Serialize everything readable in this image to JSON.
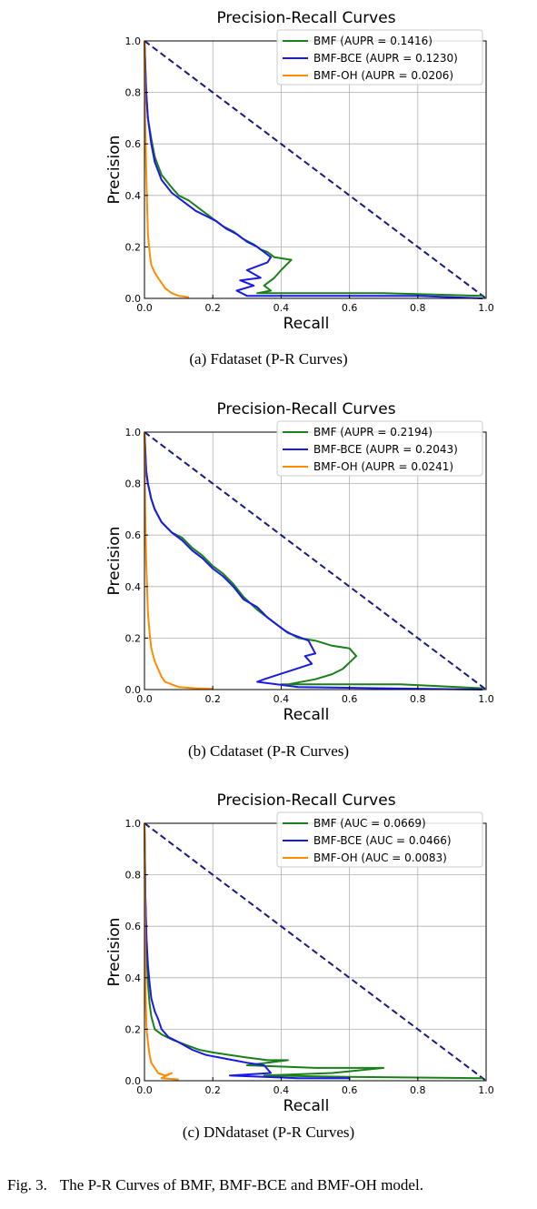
{
  "chart_data": [
    {
      "type": "line",
      "title": "Precision-Recall Curves",
      "xlabel": "Recall",
      "ylabel": "Precision",
      "xlim": [
        0,
        1
      ],
      "ylim": [
        0,
        1
      ],
      "xticks": [
        "0.0",
        "0.2",
        "0.4",
        "0.6",
        "0.8",
        "1.0"
      ],
      "yticks": [
        "0.0",
        "0.2",
        "0.4",
        "0.6",
        "0.8",
        "1.0"
      ],
      "grid": true,
      "legend_position": "top-right",
      "caption": "(a) Fdataset (P-R Curves)",
      "reference_line": {
        "x": [
          0,
          1
        ],
        "y": [
          1,
          0
        ],
        "color": "#1a1a80",
        "style": "dashed"
      },
      "series": [
        {
          "name": "BMF (AUPR = 0.1416)",
          "color": "#1a801a",
          "x": [
            0.0,
            0.005,
            0.01,
            0.02,
            0.03,
            0.05,
            0.08,
            0.1,
            0.13,
            0.17,
            0.2,
            0.23,
            0.26,
            0.29,
            0.32,
            0.34,
            0.36,
            0.38,
            0.43,
            0.4,
            0.38,
            0.36,
            0.38,
            0.35,
            0.37,
            0.33,
            0.36,
            0.5,
            0.7,
            0.99
          ],
          "y": [
            1.0,
            0.8,
            0.7,
            0.62,
            0.55,
            0.48,
            0.43,
            0.4,
            0.38,
            0.34,
            0.31,
            0.28,
            0.26,
            0.23,
            0.21,
            0.19,
            0.18,
            0.16,
            0.15,
            0.11,
            0.08,
            0.06,
            0.08,
            0.05,
            0.03,
            0.02,
            0.02,
            0.02,
            0.02,
            0.01
          ]
        },
        {
          "name": "BMF-BCE (AUPR = 0.1230)",
          "color": "#1a1ae6",
          "x": [
            0.0,
            0.005,
            0.01,
            0.02,
            0.03,
            0.05,
            0.08,
            0.12,
            0.15,
            0.18,
            0.21,
            0.24,
            0.27,
            0.3,
            0.33,
            0.35,
            0.37,
            0.36,
            0.3,
            0.34,
            0.28,
            0.32,
            0.27,
            0.3,
            0.4,
            0.6,
            0.8,
            0.99
          ],
          "y": [
            1.0,
            0.8,
            0.7,
            0.6,
            0.53,
            0.46,
            0.41,
            0.37,
            0.34,
            0.32,
            0.3,
            0.27,
            0.25,
            0.22,
            0.2,
            0.18,
            0.16,
            0.14,
            0.11,
            0.08,
            0.07,
            0.05,
            0.03,
            0.01,
            0.01,
            0.01,
            0.01,
            0.0
          ]
        },
        {
          "name": "BMF-OH (AUPR = 0.0206)",
          "color": "#ff8c00",
          "x": [
            0.0,
            0.002,
            0.005,
            0.008,
            0.01,
            0.015,
            0.02,
            0.03,
            0.04,
            0.05,
            0.06,
            0.07,
            0.08,
            0.1,
            0.13
          ],
          "y": [
            1.0,
            0.7,
            0.5,
            0.35,
            0.25,
            0.18,
            0.13,
            0.1,
            0.08,
            0.06,
            0.04,
            0.03,
            0.02,
            0.01,
            0.005
          ]
        }
      ]
    },
    {
      "type": "line",
      "title": "Precision-Recall Curves",
      "xlabel": "Recall",
      "ylabel": "Precision",
      "xlim": [
        0,
        1
      ],
      "ylim": [
        0,
        1
      ],
      "xticks": [
        "0.0",
        "0.2",
        "0.4",
        "0.6",
        "0.8",
        "1.0"
      ],
      "yticks": [
        "0.0",
        "0.2",
        "0.4",
        "0.6",
        "0.8",
        "1.0"
      ],
      "grid": true,
      "legend_position": "top-right",
      "caption": "(b) Cdataset (P-R Curves)",
      "reference_line": {
        "x": [
          0,
          1
        ],
        "y": [
          1,
          0
        ],
        "color": "#1a1a80",
        "style": "dashed"
      },
      "series": [
        {
          "name": "BMF (AUPR = 0.2194)",
          "color": "#1a801a",
          "x": [
            0.0,
            0.005,
            0.01,
            0.02,
            0.03,
            0.05,
            0.08,
            0.11,
            0.14,
            0.17,
            0.2,
            0.23,
            0.26,
            0.29,
            0.33,
            0.37,
            0.41,
            0.45,
            0.5,
            0.55,
            0.6,
            0.62,
            0.58,
            0.55,
            0.5,
            0.42,
            0.4,
            0.5,
            0.75,
            0.99
          ],
          "y": [
            1.0,
            0.85,
            0.8,
            0.74,
            0.7,
            0.65,
            0.61,
            0.59,
            0.55,
            0.52,
            0.48,
            0.45,
            0.41,
            0.36,
            0.31,
            0.27,
            0.23,
            0.2,
            0.19,
            0.17,
            0.16,
            0.13,
            0.08,
            0.06,
            0.04,
            0.02,
            0.02,
            0.02,
            0.02,
            0.005
          ]
        },
        {
          "name": "BMF-BCE (AUPR = 0.2043)",
          "color": "#1a1ae6",
          "x": [
            0.0,
            0.005,
            0.01,
            0.02,
            0.03,
            0.05,
            0.08,
            0.11,
            0.14,
            0.17,
            0.2,
            0.23,
            0.26,
            0.29,
            0.33,
            0.36,
            0.39,
            0.42,
            0.48,
            0.5,
            0.47,
            0.49,
            0.42,
            0.35,
            0.33,
            0.45,
            0.7,
            0.99
          ],
          "y": [
            1.0,
            0.85,
            0.8,
            0.74,
            0.7,
            0.65,
            0.61,
            0.58,
            0.54,
            0.51,
            0.47,
            0.44,
            0.4,
            0.35,
            0.32,
            0.28,
            0.25,
            0.22,
            0.19,
            0.14,
            0.13,
            0.1,
            0.07,
            0.04,
            0.03,
            0.01,
            0.005,
            0.0
          ]
        },
        {
          "name": "BMF-OH (AUPR = 0.0241)",
          "color": "#ff8c00",
          "x": [
            0.0,
            0.002,
            0.005,
            0.008,
            0.01,
            0.015,
            0.02,
            0.03,
            0.04,
            0.05,
            0.06,
            0.08,
            0.1,
            0.15,
            0.2
          ],
          "y": [
            1.0,
            0.7,
            0.5,
            0.38,
            0.3,
            0.22,
            0.16,
            0.11,
            0.08,
            0.05,
            0.03,
            0.02,
            0.01,
            0.005,
            0.003
          ]
        }
      ]
    },
    {
      "type": "line",
      "title": "Precision-Recall Curves",
      "xlabel": "Recall",
      "ylabel": "Precision",
      "xlim": [
        0,
        1
      ],
      "ylim": [
        0,
        1
      ],
      "xticks": [
        "0.0",
        "0.2",
        "0.4",
        "0.6",
        "0.8",
        "1.0"
      ],
      "yticks": [
        "0.0",
        "0.2",
        "0.4",
        "0.6",
        "0.8",
        "1.0"
      ],
      "grid": true,
      "legend_position": "top-right",
      "caption": "(c) DNdataset (P-R Curves)",
      "reference_line": {
        "x": [
          0,
          1
        ],
        "y": [
          1,
          0
        ],
        "color": "#1a1a80",
        "style": "dashed"
      },
      "series": [
        {
          "name": "BMF (AUC = 0.0669)",
          "color": "#1a801a",
          "x": [
            0.0,
            0.003,
            0.006,
            0.01,
            0.015,
            0.02,
            0.03,
            0.05,
            0.08,
            0.12,
            0.16,
            0.2,
            0.25,
            0.3,
            0.36,
            0.42,
            0.3,
            0.5,
            0.7,
            0.55,
            0.45,
            0.35,
            0.6,
            0.99
          ],
          "y": [
            1.0,
            0.7,
            0.5,
            0.38,
            0.3,
            0.25,
            0.2,
            0.18,
            0.16,
            0.14,
            0.12,
            0.11,
            0.1,
            0.09,
            0.08,
            0.08,
            0.06,
            0.05,
            0.05,
            0.03,
            0.025,
            0.02,
            0.015,
            0.01
          ]
        },
        {
          "name": "BMF-BCE (AUC = 0.0466)",
          "color": "#1a1ae6",
          "x": [
            0.0,
            0.003,
            0.006,
            0.01,
            0.015,
            0.02,
            0.03,
            0.04,
            0.05,
            0.07,
            0.1,
            0.14,
            0.18,
            0.22,
            0.26,
            0.3,
            0.35,
            0.37,
            0.25,
            0.35,
            0.45,
            0.6,
            0.6
          ],
          "y": [
            1.0,
            0.7,
            0.55,
            0.45,
            0.38,
            0.32,
            0.27,
            0.24,
            0.2,
            0.17,
            0.15,
            0.12,
            0.1,
            0.09,
            0.08,
            0.07,
            0.06,
            0.03,
            0.02,
            0.015,
            0.01,
            0.01,
            0.005
          ]
        },
        {
          "name": "BMF-OH (AUC = 0.0083)",
          "color": "#ff8c00",
          "x": [
            0.0,
            0.002,
            0.004,
            0.006,
            0.01,
            0.015,
            0.02,
            0.03,
            0.04,
            0.06,
            0.08,
            0.05,
            0.1
          ],
          "y": [
            1.0,
            0.5,
            0.3,
            0.2,
            0.15,
            0.1,
            0.07,
            0.05,
            0.03,
            0.02,
            0.03,
            0.01,
            0.005
          ]
        }
      ]
    }
  ],
  "figure_caption": {
    "label": "Fig. 3.",
    "text": "The P-R Curves of BMF, BMF-BCE and BMF-OH model."
  }
}
